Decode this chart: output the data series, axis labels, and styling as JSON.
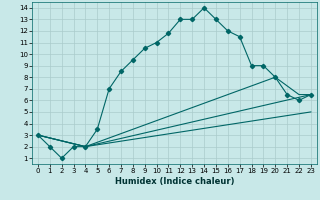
{
  "xlabel": "Humidex (Indice chaleur)",
  "bg_color": "#c8e8e8",
  "line_color": "#006666",
  "grid_color": "#aacccc",
  "xlim": [
    -0.5,
    23.5
  ],
  "ylim": [
    0.5,
    14.5
  ],
  "xticks": [
    0,
    1,
    2,
    3,
    4,
    5,
    6,
    7,
    8,
    9,
    10,
    11,
    12,
    13,
    14,
    15,
    16,
    17,
    18,
    19,
    20,
    21,
    22,
    23
  ],
  "yticks": [
    1,
    2,
    3,
    4,
    5,
    6,
    7,
    8,
    9,
    10,
    11,
    12,
    13,
    14
  ],
  "line1_x": [
    0,
    1,
    2,
    3,
    4,
    5,
    6,
    7,
    8,
    9,
    10,
    11,
    12,
    13,
    14,
    15,
    16,
    17,
    18,
    19,
    20,
    21,
    22,
    23
  ],
  "line1_y": [
    3,
    2,
    1,
    2,
    2,
    3.5,
    7,
    8.5,
    9.5,
    10.5,
    11,
    11.8,
    13,
    13,
    14,
    13,
    12,
    11.5,
    9,
    9,
    8,
    6.5,
    6,
    6.5
  ],
  "line2_x": [
    0,
    4,
    20,
    22,
    23
  ],
  "line2_y": [
    3,
    2,
    8,
    6.5,
    6.5
  ],
  "line3_x": [
    0,
    4,
    23
  ],
  "line3_y": [
    3,
    2,
    6.5
  ],
  "line4_x": [
    0,
    4,
    23
  ],
  "line4_y": [
    3,
    2,
    5.0
  ]
}
